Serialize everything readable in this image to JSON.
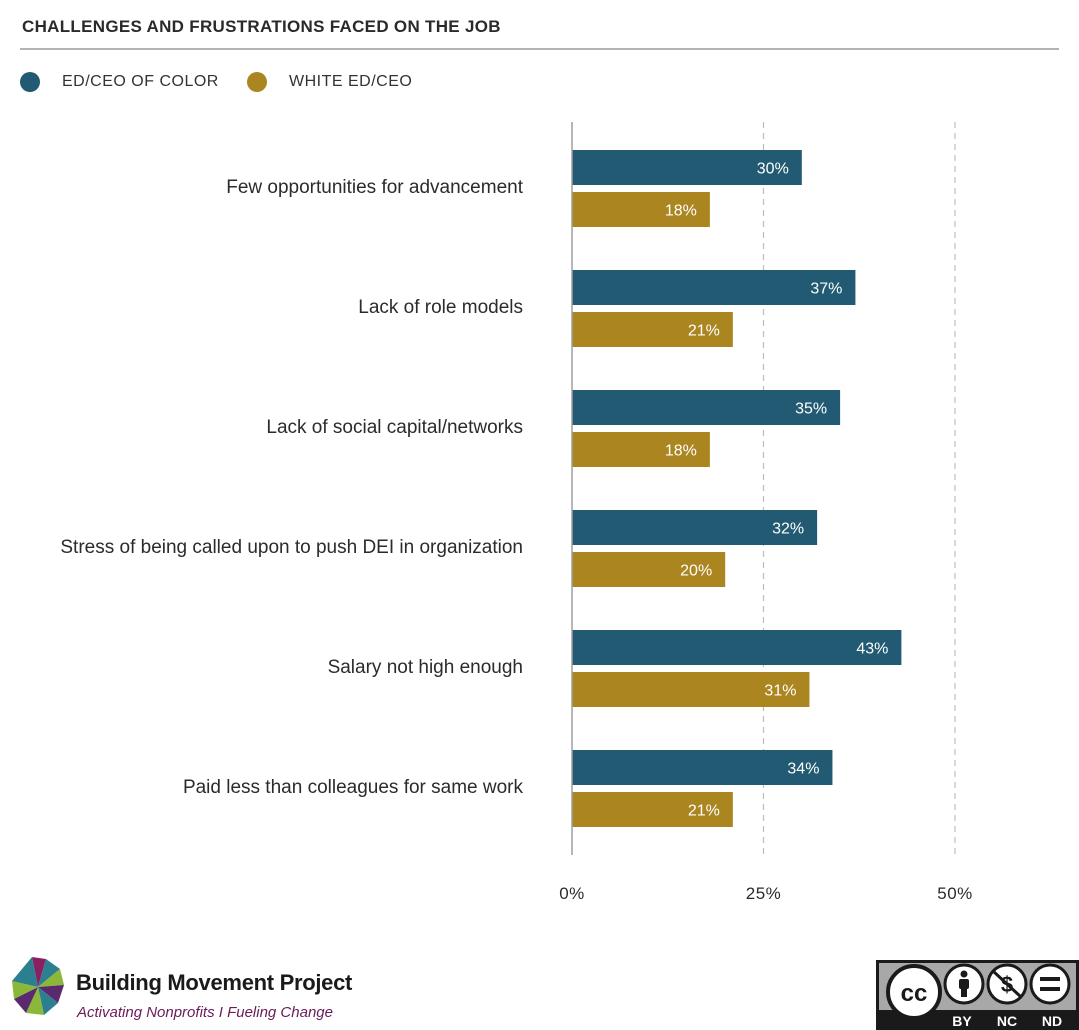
{
  "title": "CHALLENGES AND FRUSTRATIONS FACED ON THE JOB",
  "colors": {
    "series1": "#215a72",
    "series2": "#ab8520"
  },
  "chart_data": {
    "type": "bar",
    "orientation": "horizontal",
    "categories": [
      "Few opportunities for advancement",
      "Lack of role models",
      "Lack of social capital/networks",
      "Stress of being called upon to push DEI in organization",
      "Salary not high enough",
      "Paid less than colleagues for same work"
    ],
    "series": [
      {
        "name": "ED/CEO OF COLOR",
        "values": [
          30,
          37,
          35,
          32,
          43,
          34
        ],
        "color": "#215a72"
      },
      {
        "name": "WHITE ED/CEO",
        "values": [
          18,
          21,
          18,
          20,
          31,
          21
        ],
        "color": "#ab8520"
      }
    ],
    "xlim": [
      0,
      60
    ],
    "xticks": [
      0,
      25,
      50
    ],
    "xtick_labels": [
      "0%",
      "25%",
      "50%"
    ],
    "value_suffix": "%",
    "grid": "dashed vertical at 25% and 50%",
    "legend_placement": "top-left"
  },
  "footer": {
    "org_name": "Building Movement Project",
    "tagline": "Activating Nonprofits I Fueling Change",
    "license": {
      "icons": [
        "cc-icon",
        "by-icon",
        "nc-icon",
        "nd-icon"
      ],
      "labels": [
        "BY",
        "NC",
        "ND"
      ]
    }
  }
}
